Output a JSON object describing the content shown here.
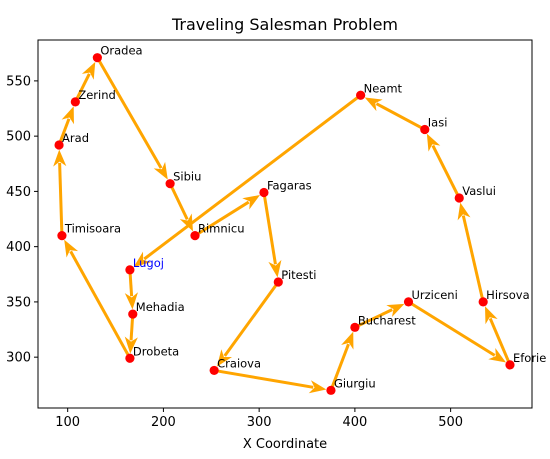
{
  "chart_data": {
    "type": "scatter",
    "title": "Traveling Salesman Problem",
    "xlabel": "X Coordinate",
    "ylabel": "",
    "xlim": [
      69,
      585
    ],
    "ylim": [
      254,
      587
    ],
    "xticks": [
      100,
      200,
      300,
      400,
      500
    ],
    "yticks": [
      300,
      350,
      400,
      450,
      500,
      550
    ],
    "grid": false,
    "colors": {
      "route": "#FFA500",
      "city": "#FF0000",
      "label": "#000000",
      "start_label": "#0000FF"
    },
    "start_city": "Lugoj",
    "cities": [
      {
        "name": "Arad",
        "x": 91,
        "y": 492
      },
      {
        "name": "Bucharest",
        "x": 400,
        "y": 327
      },
      {
        "name": "Craiova",
        "x": 253,
        "y": 288
      },
      {
        "name": "Drobeta",
        "x": 165,
        "y": 299
      },
      {
        "name": "Eforie",
        "x": 562,
        "y": 293
      },
      {
        "name": "Fagaras",
        "x": 305,
        "y": 449
      },
      {
        "name": "Giurgiu",
        "x": 375,
        "y": 270
      },
      {
        "name": "Hirsova",
        "x": 534,
        "y": 350
      },
      {
        "name": "Iasi",
        "x": 473,
        "y": 506
      },
      {
        "name": "Lugoj",
        "x": 165,
        "y": 379
      },
      {
        "name": "Mehadia",
        "x": 168,
        "y": 339
      },
      {
        "name": "Neamt",
        "x": 406,
        "y": 537
      },
      {
        "name": "Oradea",
        "x": 131,
        "y": 571
      },
      {
        "name": "Pitesti",
        "x": 320,
        "y": 368
      },
      {
        "name": "Rimnicu",
        "x": 233,
        "y": 410
      },
      {
        "name": "Sibiu",
        "x": 207,
        "y": 457
      },
      {
        "name": "Timisoara",
        "x": 94,
        "y": 410
      },
      {
        "name": "Urziceni",
        "x": 456,
        "y": 350
      },
      {
        "name": "Vaslui",
        "x": 509,
        "y": 444
      },
      {
        "name": "Zerind",
        "x": 108,
        "y": 531
      }
    ],
    "route": [
      "Lugoj",
      "Mehadia",
      "Drobeta",
      "Timisoara",
      "Arad",
      "Zerind",
      "Oradea",
      "Sibiu",
      "Rimnicu",
      "Fagaras",
      "Pitesti",
      "Craiova",
      "Giurgiu",
      "Bucharest",
      "Urziceni",
      "Eforie",
      "Hirsova",
      "Vaslui",
      "Iasi",
      "Neamt",
      "Lugoj"
    ]
  }
}
